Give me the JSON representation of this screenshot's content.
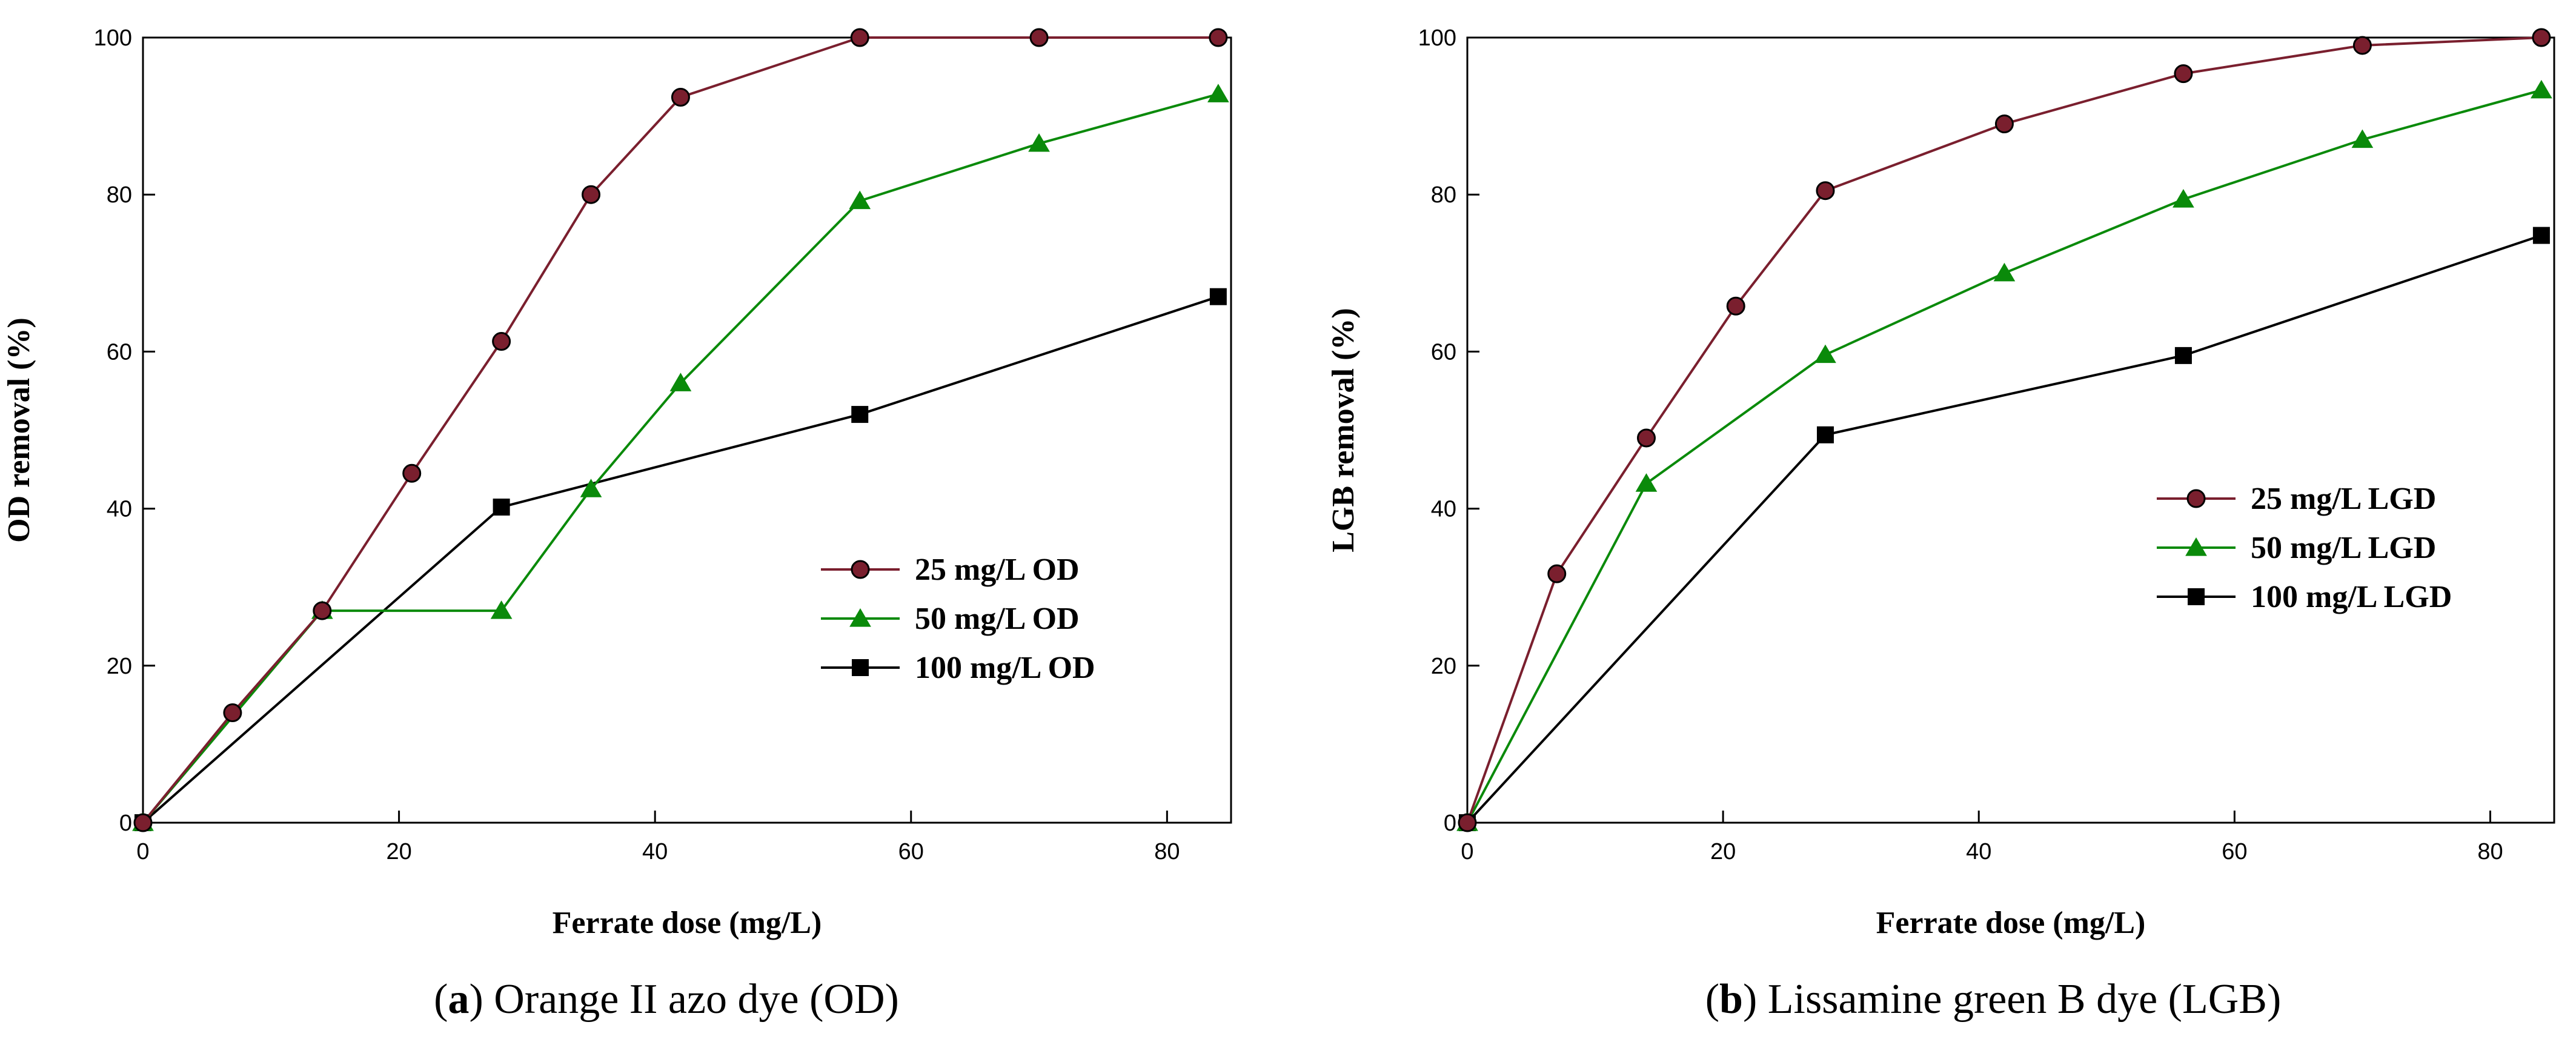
{
  "chart_data": [
    {
      "type": "line",
      "caption": {
        "letter": "a",
        "open": "(",
        "close": ")",
        "text": " Orange II azo dye (OD)"
      },
      "xlabel": "Ferrate dose (mg/L)",
      "ylabel": "OD removal (%)",
      "xlim": [
        0,
        85
      ],
      "ylim": [
        0,
        100
      ],
      "xticks": [
        0,
        20,
        40,
        60,
        80
      ],
      "yticks": [
        0,
        20,
        40,
        60,
        80,
        100
      ],
      "grid": false,
      "legend_position": "center-right",
      "series": [
        {
          "name": "25 mg/L OD",
          "color": "#7a1f2e",
          "marker": "circle",
          "x": [
            0,
            7,
            14,
            21,
            28,
            35,
            42,
            56,
            70,
            84
          ],
          "y": [
            0,
            14,
            27,
            44.5,
            61.3,
            80,
            92.4,
            100,
            100,
            100
          ]
        },
        {
          "name": "50 mg/L OD",
          "color": "#0a8a0a",
          "marker": "triangle",
          "x": [
            0,
            14,
            28,
            35,
            42,
            56,
            70,
            84
          ],
          "y": [
            0,
            27,
            27,
            42.5,
            56,
            79.2,
            86.5,
            92.8
          ]
        },
        {
          "name": "100 mg/L OD",
          "color": "#000000",
          "marker": "square",
          "x": [
            0,
            28,
            56,
            84
          ],
          "y": [
            0,
            40.2,
            52,
            67
          ]
        }
      ]
    },
    {
      "type": "line",
      "caption": {
        "letter": "b",
        "open": "(",
        "close": ")",
        "text": " Lissamine green B dye (LGB)"
      },
      "xlabel": "Ferrate dose (mg/L)",
      "ylabel": "LGB removal (%)",
      "xlim": [
        0,
        85
      ],
      "ylim": [
        0,
        100
      ],
      "xticks": [
        0,
        20,
        40,
        60,
        80
      ],
      "yticks": [
        0,
        20,
        40,
        60,
        80,
        100
      ],
      "grid": false,
      "legend_position": "center-right",
      "series": [
        {
          "name": "25 mg/L LGD",
          "color": "#7a1f2e",
          "marker": "circle",
          "x": [
            0,
            7,
            14,
            21,
            28,
            42,
            56,
            70,
            84
          ],
          "y": [
            0,
            31.7,
            49,
            65.8,
            80.5,
            89,
            95.4,
            99,
            100
          ]
        },
        {
          "name": "50 mg/L LGD",
          "color": "#0a8a0a",
          "marker": "triangle",
          "x": [
            0,
            14,
            28,
            42,
            56,
            70,
            84
          ],
          "y": [
            0,
            43.2,
            59.6,
            70,
            79.4,
            87,
            93.3
          ]
        },
        {
          "name": "100 mg/L LGD",
          "color": "#000000",
          "marker": "square",
          "x": [
            0,
            28,
            56,
            84
          ],
          "y": [
            0,
            49.4,
            59.5,
            74.8
          ]
        }
      ]
    }
  ]
}
